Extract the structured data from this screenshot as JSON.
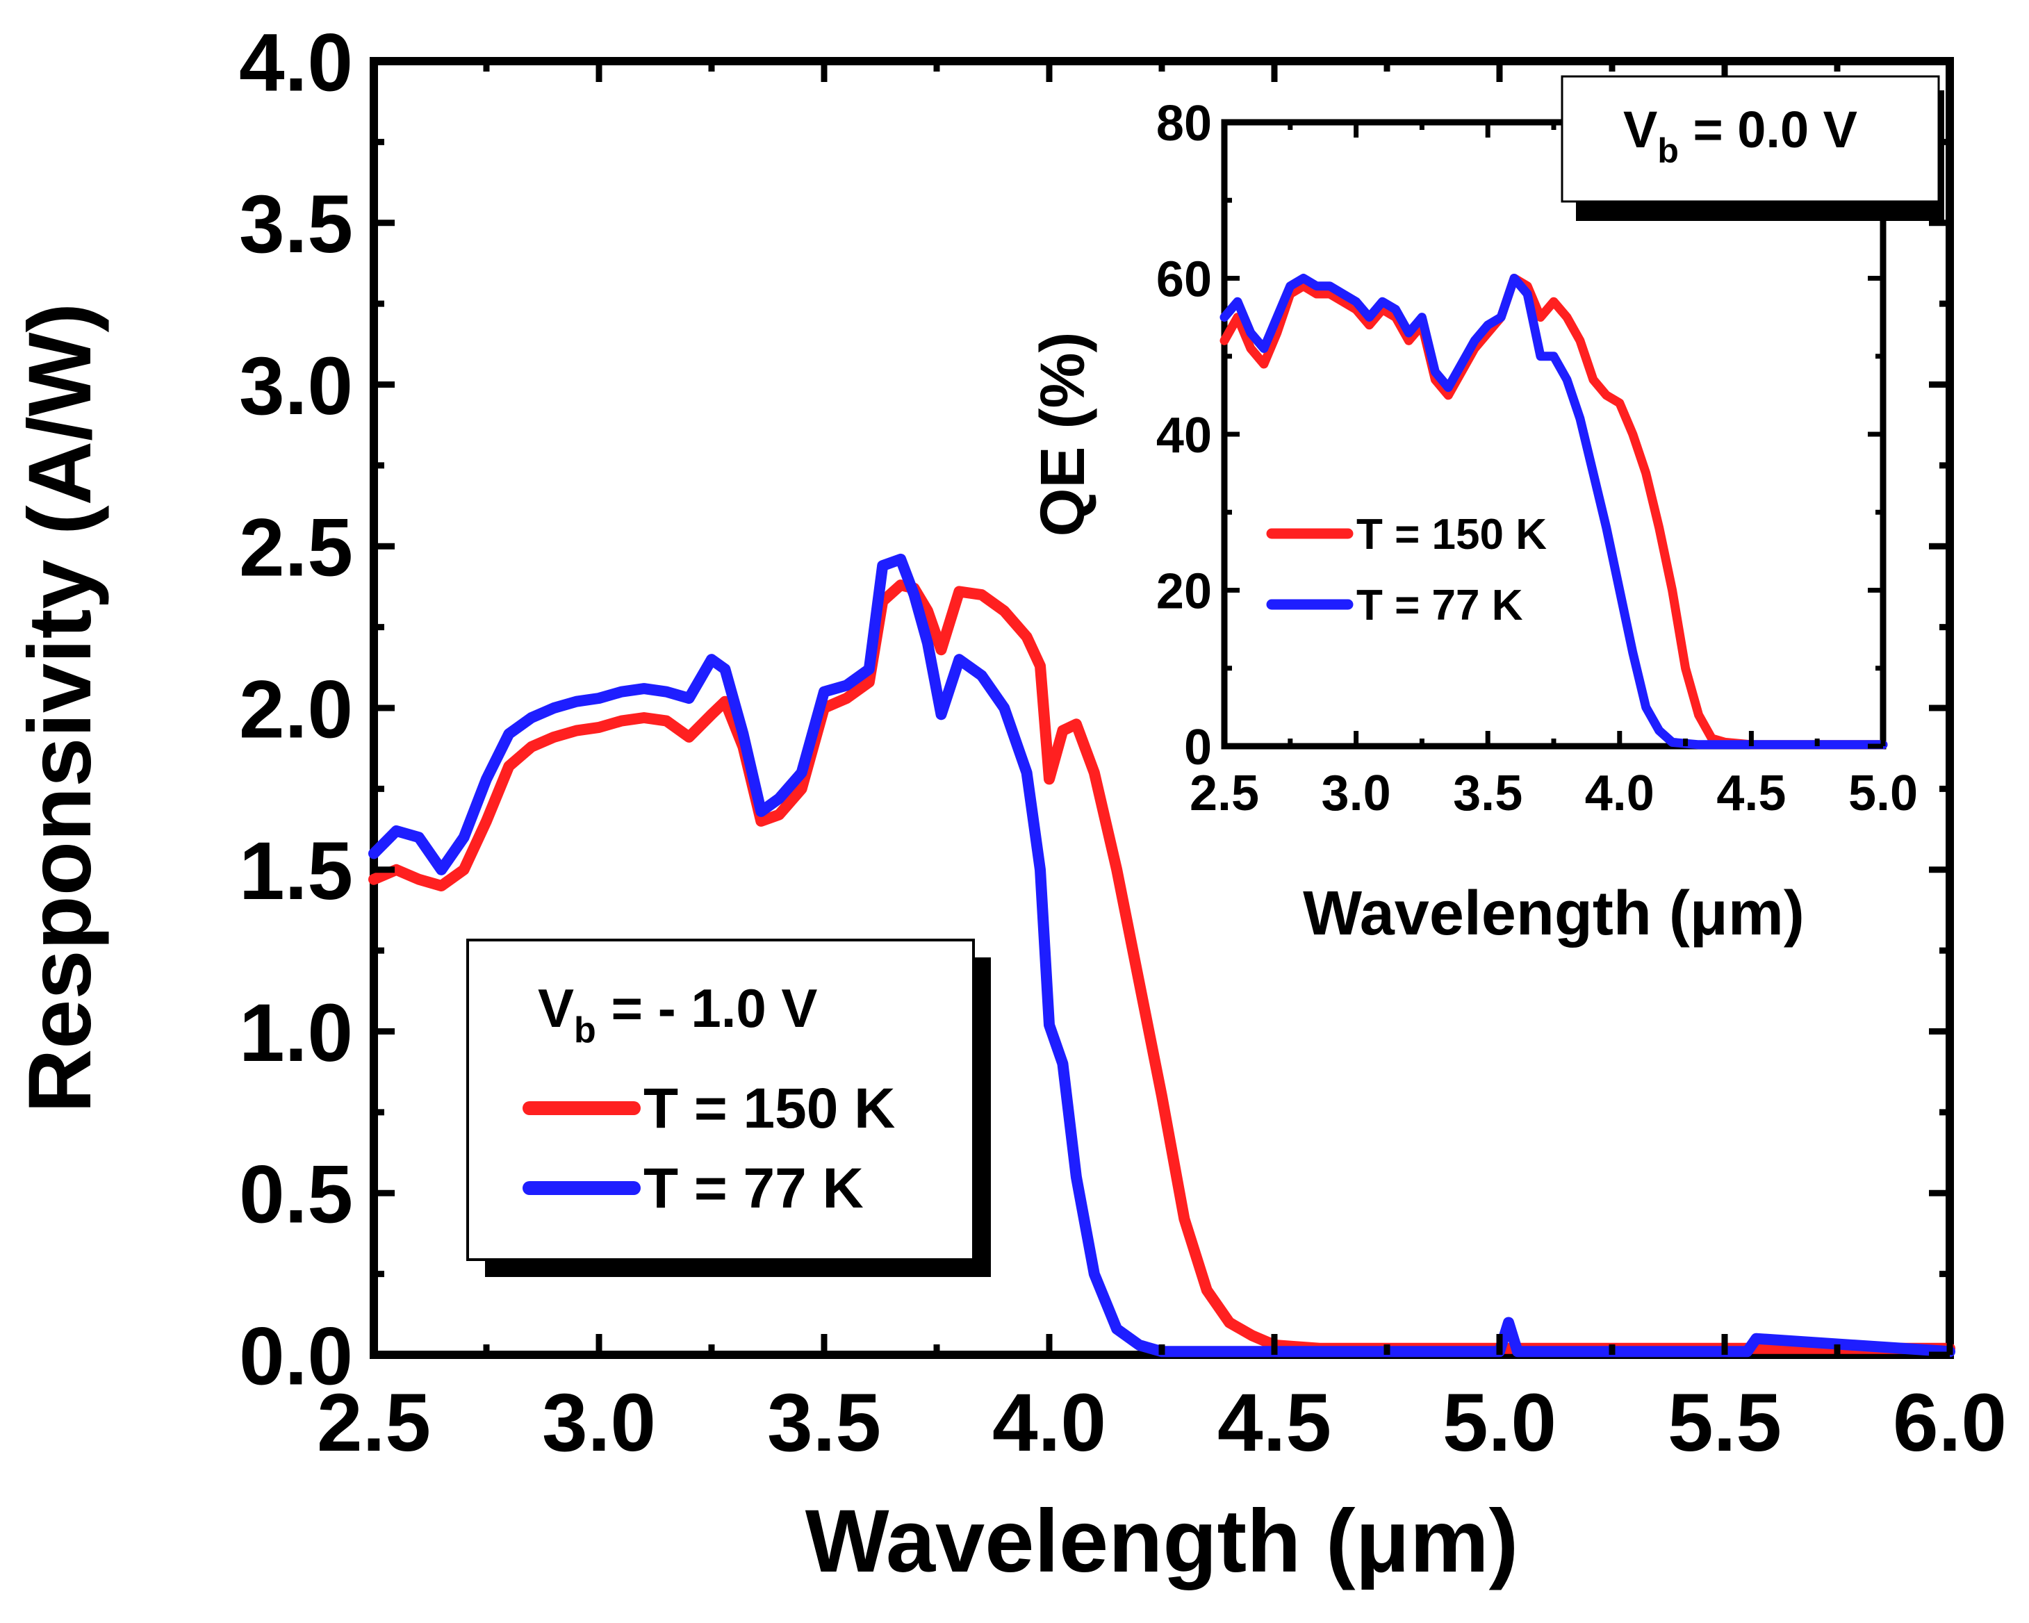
{
  "chart_data": [
    {
      "type": "line",
      "xlabel": "Wavelength (μm)",
      "ylabel": "Responsivity (A/W)",
      "xlim": [
        2.5,
        6.0
      ],
      "ylim": [
        0.0,
        4.0
      ],
      "x_ticks": [
        "2.5",
        "3.0",
        "3.5",
        "4.0",
        "4.5",
        "5.0",
        "5.5",
        "6.0"
      ],
      "y_ticks": [
        "0.0",
        "0.5",
        "1.0",
        "1.5",
        "2.0",
        "2.5",
        "3.0",
        "3.5",
        "4.0"
      ],
      "legend": {
        "title_main": "V",
        "title_sub": "b",
        "title_rest": " = - 1.0 V",
        "placement": "lower-left",
        "entries": [
          "T = 150 K",
          "T = 77 K"
        ]
      },
      "series": [
        {
          "name": "T = 150 K",
          "color": "#ff2020",
          "x": [
            2.5,
            2.55,
            2.6,
            2.65,
            2.7,
            2.75,
            2.8,
            2.85,
            2.9,
            2.95,
            3.0,
            3.05,
            3.1,
            3.15,
            3.2,
            3.25,
            3.28,
            3.32,
            3.36,
            3.4,
            3.45,
            3.5,
            3.55,
            3.6,
            3.63,
            3.67,
            3.7,
            3.73,
            3.76,
            3.8,
            3.85,
            3.9,
            3.95,
            3.98,
            4.0,
            4.03,
            4.06,
            4.1,
            4.15,
            4.2,
            4.25,
            4.3,
            4.35,
            4.4,
            4.45,
            4.5,
            4.6,
            4.8,
            5.0,
            5.2,
            5.5,
            6.0
          ],
          "values": [
            1.47,
            1.5,
            1.47,
            1.45,
            1.5,
            1.65,
            1.82,
            1.88,
            1.91,
            1.93,
            1.94,
            1.96,
            1.97,
            1.96,
            1.91,
            1.98,
            2.02,
            1.88,
            1.65,
            1.67,
            1.75,
            2.0,
            2.03,
            2.08,
            2.33,
            2.38,
            2.37,
            2.3,
            2.18,
            2.36,
            2.35,
            2.3,
            2.22,
            2.13,
            1.78,
            1.93,
            1.95,
            1.8,
            1.5,
            1.15,
            0.8,
            0.42,
            0.2,
            0.1,
            0.06,
            0.03,
            0.02,
            0.02,
            0.02,
            0.02,
            0.02,
            0.02
          ]
        },
        {
          "name": "T = 77 K",
          "color": "#1e1eff",
          "x": [
            2.5,
            2.55,
            2.6,
            2.65,
            2.7,
            2.75,
            2.8,
            2.85,
            2.9,
            2.95,
            3.0,
            3.05,
            3.1,
            3.15,
            3.2,
            3.25,
            3.28,
            3.32,
            3.36,
            3.4,
            3.45,
            3.5,
            3.55,
            3.6,
            3.63,
            3.67,
            3.7,
            3.73,
            3.76,
            3.8,
            3.85,
            3.9,
            3.95,
            3.98,
            4.0,
            4.03,
            4.06,
            4.1,
            4.15,
            4.2,
            4.25,
            4.3,
            4.4,
            4.5,
            4.6,
            4.8,
            5.0,
            5.02,
            5.04,
            5.2,
            5.55,
            5.57,
            6.0
          ],
          "values": [
            1.55,
            1.62,
            1.6,
            1.5,
            1.6,
            1.78,
            1.92,
            1.97,
            2.0,
            2.02,
            2.03,
            2.05,
            2.06,
            2.05,
            2.03,
            2.15,
            2.12,
            1.92,
            1.68,
            1.72,
            1.8,
            2.05,
            2.07,
            2.12,
            2.44,
            2.46,
            2.35,
            2.2,
            1.98,
            2.15,
            2.1,
            2.0,
            1.8,
            1.5,
            1.02,
            0.9,
            0.55,
            0.25,
            0.08,
            0.03,
            0.01,
            0.01,
            0.01,
            0.01,
            0.01,
            0.01,
            0.01,
            0.1,
            0.01,
            0.01,
            0.01,
            0.05,
            0.01
          ]
        }
      ]
    },
    {
      "type": "line",
      "xlabel": "Wavelength (μm)",
      "ylabel": "QE (%)",
      "xlim": [
        2.5,
        5.0
      ],
      "ylim": [
        0,
        80
      ],
      "x_ticks": [
        "2.5",
        "3.0",
        "3.5",
        "4.0",
        "4.5",
        "5.0"
      ],
      "y_ticks": [
        "0",
        "20",
        "40",
        "60",
        "80"
      ],
      "legend": {
        "title_main": "V",
        "title_sub": "b",
        "title_rest": " = 0.0 V",
        "placement": "top-right",
        "entries": [
          "T = 150 K",
          "T = 77 K"
        ]
      },
      "series": [
        {
          "name": "T = 150 K",
          "color": "#ff2020",
          "x": [
            2.5,
            2.55,
            2.6,
            2.65,
            2.7,
            2.75,
            2.8,
            2.85,
            2.9,
            2.95,
            3.0,
            3.05,
            3.1,
            3.15,
            3.2,
            3.25,
            3.3,
            3.35,
            3.4,
            3.45,
            3.5,
            3.55,
            3.6,
            3.65,
            3.7,
            3.75,
            3.8,
            3.85,
            3.9,
            3.95,
            4.0,
            4.05,
            4.1,
            4.15,
            4.2,
            4.25,
            4.3,
            4.35,
            4.4,
            4.5,
            5.0
          ],
          "values": [
            52,
            55,
            51,
            49,
            53,
            58,
            59,
            58,
            58,
            57,
            56,
            54,
            56,
            55,
            52,
            54,
            47,
            45,
            48,
            51,
            53,
            55,
            60,
            59,
            55,
            57,
            55,
            52,
            47,
            45,
            44,
            40,
            35,
            28,
            20,
            10,
            4,
            1,
            0.5,
            0.2,
            0.2
          ]
        },
        {
          "name": "T = 77 K",
          "color": "#1e1eff",
          "x": [
            2.5,
            2.55,
            2.6,
            2.65,
            2.7,
            2.75,
            2.8,
            2.85,
            2.9,
            2.95,
            3.0,
            3.05,
            3.1,
            3.15,
            3.2,
            3.25,
            3.3,
            3.35,
            3.4,
            3.45,
            3.5,
            3.55,
            3.6,
            3.65,
            3.7,
            3.75,
            3.8,
            3.85,
            3.9,
            3.95,
            4.0,
            4.05,
            4.1,
            4.15,
            4.2,
            4.3,
            4.6,
            5.0
          ],
          "values": [
            55,
            57,
            53,
            51,
            55,
            59,
            60,
            59,
            59,
            58,
            57,
            55,
            57,
            56,
            53,
            55,
            48,
            46,
            49,
            52,
            54,
            55,
            60,
            58,
            50,
            50,
            47,
            42,
            35,
            28,
            20,
            12,
            5,
            2,
            0.5,
            0.2,
            0.2,
            0.2
          ]
        }
      ]
    }
  ]
}
